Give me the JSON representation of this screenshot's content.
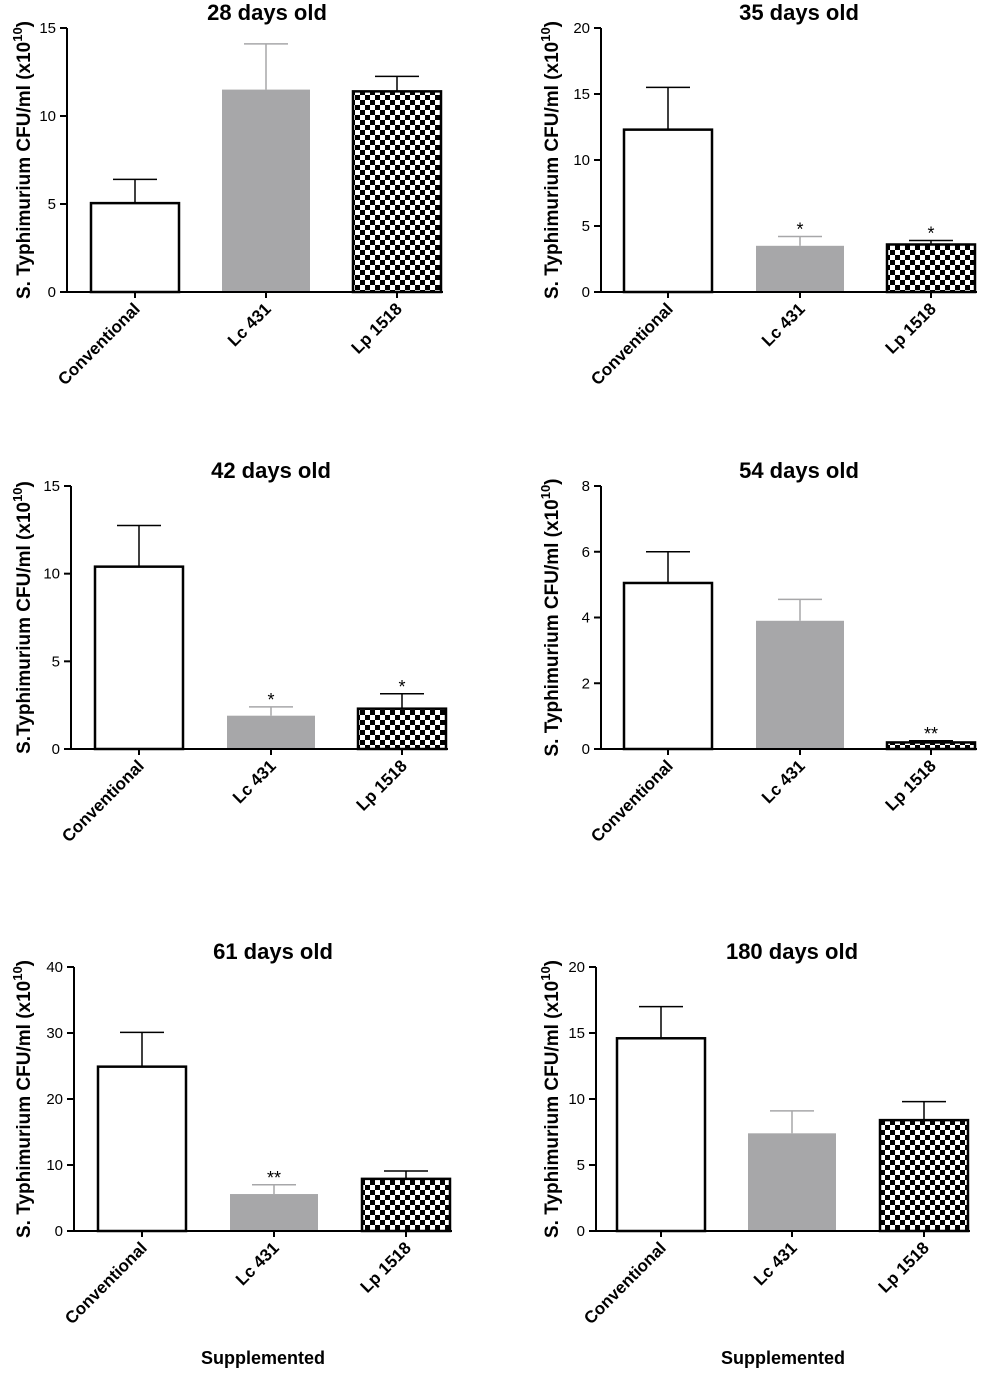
{
  "colors": {
    "axis": "#000000",
    "conventional": "#ffffff",
    "lc431": "#a7a7a9",
    "lp1518_pattern": "checkerboard",
    "error_bar_gray": "#a7a7a9"
  },
  "chart_data": [
    {
      "type": "bar",
      "title": "28 days old",
      "ylabel": "S. Typhimurium CFU/ml (x10",
      "ylabel_sup": "10",
      "ylabel_end": ")",
      "xlabel": "",
      "categories": [
        "Conventional",
        "Lc 431",
        "Lp 1518"
      ],
      "values": [
        5.05,
        11.5,
        11.4
      ],
      "errors": [
        1.35,
        2.6,
        0.85
      ],
      "significance": [
        "",
        "",
        ""
      ],
      "ylim": [
        0,
        15
      ],
      "yticks": [
        0,
        5,
        10,
        15
      ],
      "grid": false
    },
    {
      "type": "bar",
      "title": "35 days old",
      "ylabel": "S. Typhimurium CFU/ml (x10",
      "ylabel_sup": "10",
      "ylabel_end": ")",
      "xlabel": "",
      "categories": [
        "Conventional",
        "Lc 431",
        "Lp 1518"
      ],
      "values": [
        12.3,
        3.5,
        3.6
      ],
      "errors": [
        3.2,
        0.7,
        0.3
      ],
      "significance": [
        "",
        "*",
        "*"
      ],
      "ylim": [
        0,
        20
      ],
      "yticks": [
        0,
        5,
        10,
        15,
        20
      ],
      "grid": false
    },
    {
      "type": "bar",
      "title": "42 days old",
      "ylabel": "S.Typhimurium CFU/ml (x10",
      "ylabel_sup": "10",
      "ylabel_end": ")",
      "xlabel": "",
      "categories": [
        "Conventional",
        "Lc 431",
        "Lp 1518"
      ],
      "values": [
        10.4,
        1.9,
        2.3
      ],
      "errors": [
        2.35,
        0.5,
        0.85
      ],
      "significance": [
        "",
        "*",
        "*"
      ],
      "ylim": [
        0,
        15
      ],
      "yticks": [
        0,
        5,
        10,
        15
      ],
      "grid": false
    },
    {
      "type": "bar",
      "title": "54 days old",
      "ylabel": "S. Typhimurium CFU/ml (x10",
      "ylabel_sup": "10",
      "ylabel_end": ")",
      "xlabel": "",
      "categories": [
        "Conventional",
        "Lc 431",
        "Lp 1518"
      ],
      "values": [
        5.05,
        3.9,
        0.2
      ],
      "errors": [
        0.95,
        0.65,
        0.05
      ],
      "significance": [
        "",
        "",
        "**"
      ],
      "ylim": [
        0,
        8
      ],
      "yticks": [
        0,
        2,
        4,
        6,
        8
      ],
      "grid": false
    },
    {
      "type": "bar",
      "title": "61 days old",
      "ylabel": "S. Typhimurium CFU/ml (x10",
      "ylabel_sup": "10",
      "ylabel_end": ")",
      "xlabel": "Supplemented",
      "categories": [
        "Conventional",
        "Lc 431",
        "Lp 1518"
      ],
      "values": [
        24.9,
        5.6,
        7.9
      ],
      "errors": [
        5.2,
        1.4,
        1.2
      ],
      "significance": [
        "",
        "**",
        ""
      ],
      "ylim": [
        0,
        40
      ],
      "yticks": [
        0,
        10,
        20,
        30,
        40
      ],
      "grid": false
    },
    {
      "type": "bar",
      "title": "180 days old",
      "ylabel": "S. Typhimurium CFU/ml (x10",
      "ylabel_sup": "10",
      "ylabel_end": ")",
      "xlabel": "Supplemented",
      "categories": [
        "Conventional",
        "Lc 431",
        "Lp 1518"
      ],
      "values": [
        14.6,
        7.4,
        8.4
      ],
      "errors": [
        2.4,
        1.7,
        1.4
      ],
      "significance": [
        "",
        "",
        ""
      ],
      "ylim": [
        0,
        20
      ],
      "yticks": [
        0,
        5,
        10,
        15,
        20
      ],
      "grid": false
    }
  ]
}
